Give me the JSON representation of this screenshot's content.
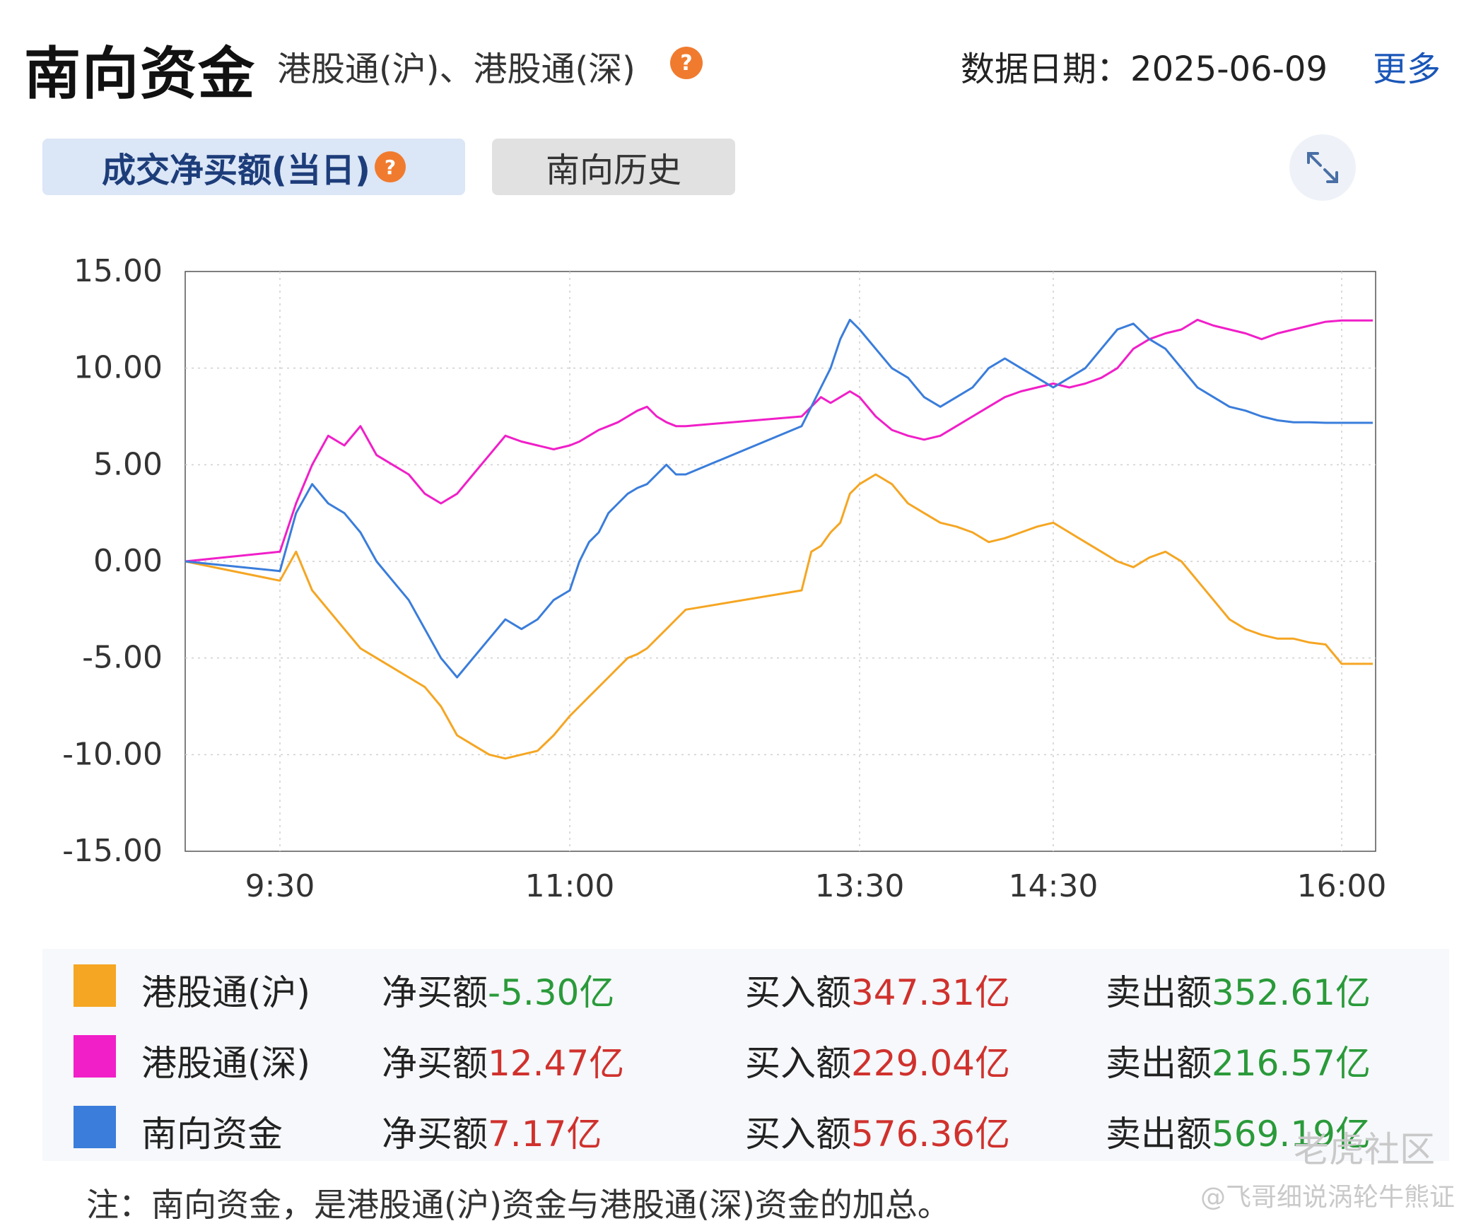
{
  "header": {
    "title": "南向资金",
    "subtitle": "港股通(沪)、港股通(深)",
    "help_glyph": "?",
    "date_label": "数据日期：2025-06-09",
    "more_link": "更多"
  },
  "tabs": {
    "active_label": "成交净买额(当日)",
    "inactive_label": "南向历史"
  },
  "icons": {
    "help": "help-icon",
    "expand": "expand-icon"
  },
  "chart_data": {
    "type": "line",
    "title": "",
    "xlabel": "",
    "ylabel": "",
    "ylim": [
      -15,
      15
    ],
    "yticks": [
      "15.00",
      "10.00",
      "5.00",
      "0.00",
      "-5.00",
      "-10.00",
      "-15.00"
    ],
    "xticks": [
      "9:30",
      "11:00",
      "13:30",
      "14:30",
      "16:00"
    ],
    "x": [
      "09:00",
      "09:30",
      "09:35",
      "09:40",
      "09:45",
      "09:50",
      "09:55",
      "10:00",
      "10:05",
      "10:10",
      "10:15",
      "10:20",
      "10:25",
      "10:30",
      "10:35",
      "10:40",
      "10:45",
      "10:50",
      "10:55",
      "11:00",
      "11:05",
      "11:10",
      "11:15",
      "11:20",
      "11:25",
      "11:30",
      "11:35",
      "11:40",
      "11:45",
      "11:50",
      "11:55",
      "12:00",
      "13:00",
      "13:05",
      "13:10",
      "13:15",
      "13:20",
      "13:25",
      "13:30",
      "13:35",
      "13:40",
      "13:45",
      "13:50",
      "13:55",
      "14:00",
      "14:05",
      "14:10",
      "14:15",
      "14:20",
      "14:25",
      "14:30",
      "14:35",
      "14:40",
      "14:45",
      "14:50",
      "14:55",
      "15:00",
      "15:05",
      "15:10",
      "15:15",
      "15:20",
      "15:25",
      "15:30",
      "15:35",
      "15:40",
      "15:45",
      "15:50",
      "15:55",
      "16:00",
      "16:10"
    ],
    "series": [
      {
        "name": "港股通(沪)",
        "color": "#f5a623",
        "values": [
          0,
          -1.0,
          0.5,
          -1.5,
          -2.5,
          -3.5,
          -4.5,
          -5.0,
          -5.5,
          -6.0,
          -6.5,
          -7.5,
          -9.0,
          -9.5,
          -10.0,
          -10.2,
          -10.0,
          -9.8,
          -9.0,
          -8.0,
          -7.5,
          -7.0,
          -6.5,
          -6.0,
          -5.5,
          -5.0,
          -4.8,
          -4.5,
          -4.0,
          -3.5,
          -3.0,
          -2.5,
          -1.5,
          0.5,
          0.8,
          1.5,
          2.0,
          3.5,
          4.0,
          4.5,
          4.0,
          3.0,
          2.5,
          2.0,
          1.8,
          1.5,
          1.0,
          1.2,
          1.5,
          1.8,
          2.0,
          1.5,
          1.0,
          0.5,
          0,
          -0.3,
          0.2,
          0.5,
          0,
          -1.0,
          -2.0,
          -3.0,
          -3.5,
          -3.8,
          -4.0,
          -4.0,
          -4.2,
          -4.3,
          -5.3,
          -5.3
        ]
      },
      {
        "name": "港股通(深)",
        "color": "#f01fc8",
        "values": [
          0,
          0.5,
          3.0,
          5.0,
          6.5,
          6.0,
          7.0,
          5.5,
          5.0,
          4.5,
          3.5,
          3.0,
          3.5,
          4.5,
          5.5,
          6.5,
          6.2,
          6.0,
          5.8,
          6.0,
          6.2,
          6.5,
          6.8,
          7.0,
          7.2,
          7.5,
          7.8,
          8.0,
          7.5,
          7.2,
          7.0,
          7.0,
          7.5,
          8.0,
          8.5,
          8.2,
          8.5,
          8.8,
          8.5,
          7.5,
          6.8,
          6.5,
          6.3,
          6.5,
          7.0,
          7.5,
          8.0,
          8.5,
          8.8,
          9.0,
          9.2,
          9.0,
          9.2,
          9.5,
          10.0,
          11.0,
          11.5,
          11.8,
          12.0,
          12.5,
          12.2,
          12.0,
          11.8,
          11.5,
          11.8,
          12.0,
          12.2,
          12.4,
          12.47,
          12.47
        ]
      },
      {
        "name": "南向资金",
        "color": "#3a7ddb",
        "values": [
          0,
          -0.5,
          2.5,
          4.0,
          3.0,
          2.5,
          1.5,
          0,
          -1.0,
          -2.0,
          -3.5,
          -5.0,
          -6.0,
          -5.0,
          -4.0,
          -3.0,
          -3.5,
          -3.0,
          -2.0,
          -1.5,
          0,
          1.0,
          1.5,
          2.5,
          3.0,
          3.5,
          3.8,
          4.0,
          4.5,
          5.0,
          4.5,
          4.5,
          7.0,
          8.0,
          9.0,
          10.0,
          11.5,
          12.5,
          12.0,
          11.0,
          10.0,
          9.5,
          8.5,
          8.0,
          8.5,
          9.0,
          10.0,
          10.5,
          10.0,
          9.5,
          9.0,
          9.5,
          10.0,
          11.0,
          12.0,
          12.3,
          11.5,
          11.0,
          10.0,
          9.0,
          8.5,
          8.0,
          7.8,
          7.5,
          7.3,
          7.2,
          7.2,
          7.17,
          7.17,
          7.17
        ]
      }
    ]
  },
  "legend": [
    {
      "name": "港股通(沪)",
      "color": "#f5a623",
      "net_label": "净买额",
      "net_value": "-5.30亿",
      "net_sign": "neg",
      "buy_label": "买入额",
      "buy_value": "347.31亿",
      "sell_label": "卖出额",
      "sell_value": "352.61亿"
    },
    {
      "name": "港股通(深)",
      "color": "#f01fc8",
      "net_label": "净买额",
      "net_value": "12.47亿",
      "net_sign": "pos",
      "buy_label": "买入额",
      "buy_value": "229.04亿",
      "sell_label": "卖出额",
      "sell_value": "216.57亿"
    },
    {
      "name": "南向资金",
      "color": "#3a7ddb",
      "net_label": "净买额",
      "net_value": "7.17亿",
      "net_sign": "pos",
      "buy_label": "买入额",
      "buy_value": "576.36亿",
      "sell_label": "卖出额",
      "sell_value": "569.19亿"
    }
  ],
  "note": "注：南向资金，是港股通(沪)资金与港股通(深)资金的加总。",
  "watermark": {
    "logo": "老虎社区",
    "author": "@飞哥细说涡轮牛熊证"
  }
}
